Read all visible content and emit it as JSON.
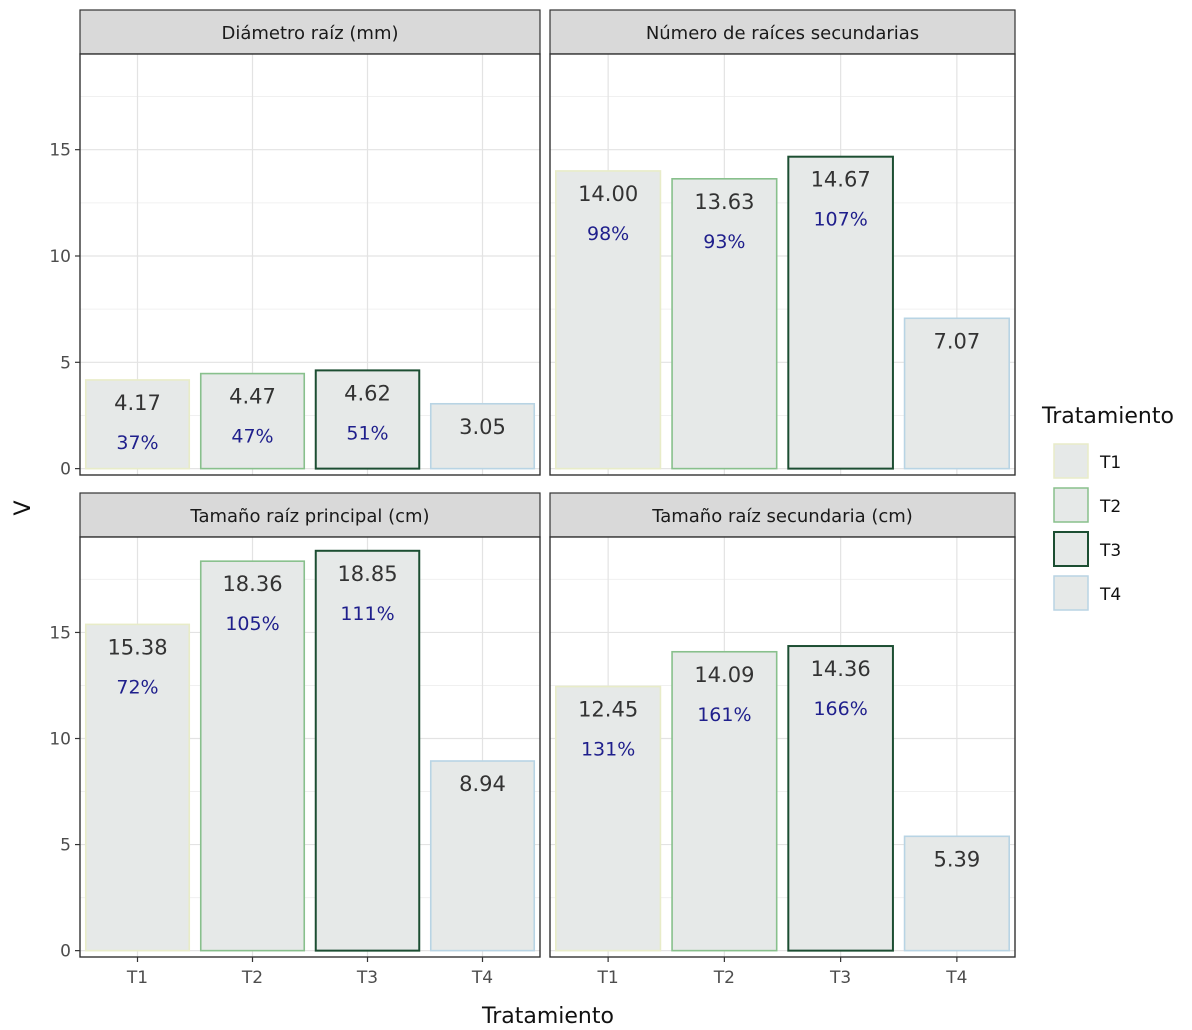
{
  "chart_data": {
    "type": "bar",
    "xlabel": "Tratamiento",
    "ylabel": "V",
    "categories": [
      "T1",
      "T2",
      "T3",
      "T4"
    ],
    "y_ticks": [
      0,
      5,
      10,
      15
    ],
    "ylim": [
      -0.3,
      19.5
    ],
    "grid": true,
    "legend": {
      "title": "Tratamiento",
      "placement": "right",
      "entries": [
        {
          "label": "T1",
          "color": "#e8ecc8"
        },
        {
          "label": "T2",
          "color": "#88c08c"
        },
        {
          "label": "T3",
          "color": "#1c4e32"
        },
        {
          "label": "T4",
          "color": "#b8d4e4"
        }
      ]
    },
    "bar_fill": "#e6e9e8",
    "percent_color": "#1f1f8c",
    "panels": [
      {
        "title": "Diámetro raíz (mm)",
        "values": [
          4.17,
          4.47,
          4.62,
          3.05
        ],
        "value_labels": [
          "4.17",
          "4.47",
          "4.62",
          "3.05"
        ],
        "percent_labels": [
          "37%",
          "47%",
          "51%",
          ""
        ]
      },
      {
        "title": "Número de raíces secundarias",
        "values": [
          14.0,
          13.63,
          14.67,
          7.07
        ],
        "value_labels": [
          "14.00",
          "13.63",
          "14.67",
          "7.07"
        ],
        "percent_labels": [
          "98%",
          "93%",
          "107%",
          ""
        ]
      },
      {
        "title": "Tamaño raíz principal (cm)",
        "values": [
          15.38,
          18.36,
          18.85,
          8.94
        ],
        "value_labels": [
          "15.38",
          "18.36",
          "18.85",
          "8.94"
        ],
        "percent_labels": [
          "72%",
          "105%",
          "111%",
          ""
        ]
      },
      {
        "title": "Tamaño raíz secundaria (cm)",
        "values": [
          12.45,
          14.09,
          14.36,
          5.39
        ],
        "value_labels": [
          "12.45",
          "14.09",
          "14.36",
          "5.39"
        ],
        "percent_labels": [
          "131%",
          "161%",
          "166%",
          ""
        ]
      }
    ]
  }
}
